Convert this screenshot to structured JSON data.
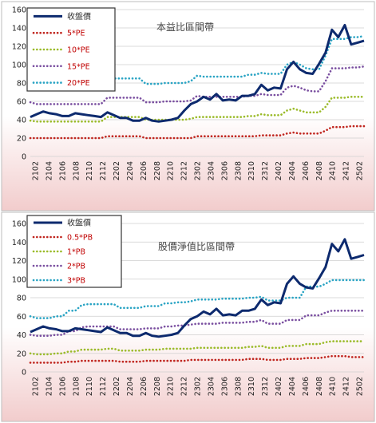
{
  "colors": {
    "price": "#0d2a6e",
    "s1": "#c0261f",
    "s2": "#9bbb2a",
    "s3": "#7a4fa0",
    "s4": "#2aa4c4",
    "bg_top": "#ffffff",
    "bg_bottom": "#f0c8c8"
  },
  "chart_data": [
    {
      "type": "line",
      "title": "本益比區間帶",
      "ylim": [
        0,
        160
      ],
      "yticks": [
        0,
        20,
        40,
        60,
        80,
        100,
        120,
        140,
        160
      ],
      "x_tick_labels": [
        "2102",
        "2104",
        "2106",
        "2108",
        "2110",
        "2112",
        "2202",
        "2204",
        "2206",
        "2208",
        "2210",
        "2212",
        "2302",
        "2304",
        "2306",
        "2308",
        "2310",
        "2312",
        "2402",
        "2404",
        "2406",
        "2408",
        "2410",
        "2412",
        "2502"
      ],
      "grid": "horizontal",
      "legend_position": "top-left",
      "series": [
        {
          "name": "收盤價",
          "style": "solid",
          "values": [
            43,
            46,
            49,
            47,
            46,
            44,
            44,
            47,
            46,
            45,
            44,
            43,
            48,
            45,
            42,
            42,
            39,
            39,
            42,
            39,
            38,
            39,
            40,
            42,
            50,
            57,
            60,
            65,
            62,
            68,
            61,
            62,
            61,
            66,
            66,
            68,
            78,
            72,
            75,
            74,
            95,
            103,
            95,
            91,
            90,
            101,
            113,
            138,
            130,
            143,
            122,
            124,
            126
          ]
        },
        {
          "name": "5*PE",
          "style": "dotted",
          "values": [
            20,
            20,
            20,
            20,
            20,
            20,
            20,
            20,
            20,
            20,
            20,
            20,
            22,
            22,
            22,
            22,
            22,
            22,
            20,
            20,
            20,
            20,
            20,
            20,
            20,
            20,
            22,
            22,
            22,
            22,
            22,
            22,
            22,
            22,
            22,
            22,
            23,
            23,
            23,
            23,
            25,
            26,
            25,
            25,
            25,
            25,
            28,
            32,
            32,
            32,
            33,
            33,
            33
          ]
        },
        {
          "name": "10*PE",
          "style": "dotted",
          "values": [
            39,
            38,
            38,
            38,
            38,
            38,
            38,
            38,
            38,
            38,
            38,
            38,
            43,
            43,
            43,
            43,
            43,
            43,
            40,
            40,
            40,
            40,
            40,
            40,
            40,
            41,
            43,
            43,
            43,
            43,
            43,
            43,
            43,
            43,
            44,
            44,
            46,
            45,
            45,
            45,
            50,
            52,
            50,
            48,
            48,
            48,
            54,
            64,
            64,
            64,
            65,
            65,
            65
          ]
        },
        {
          "name": "15*PE",
          "style": "dotted",
          "values": [
            59,
            57,
            57,
            57,
            57,
            57,
            57,
            57,
            57,
            57,
            57,
            57,
            64,
            64,
            64,
            64,
            64,
            64,
            59,
            59,
            59,
            60,
            60,
            60,
            60,
            61,
            66,
            65,
            65,
            65,
            65,
            65,
            65,
            65,
            66,
            66,
            68,
            67,
            67,
            67,
            75,
            77,
            75,
            72,
            71,
            71,
            82,
            96,
            96,
            96,
            97,
            97,
            98
          ]
        },
        {
          "name": "20*PE",
          "style": "dotted",
          "values": [
            78,
            76,
            76,
            76,
            76,
            76,
            76,
            76,
            76,
            76,
            76,
            76,
            85,
            85,
            85,
            85,
            85,
            85,
            79,
            79,
            79,
            80,
            80,
            80,
            80,
            82,
            88,
            87,
            87,
            87,
            87,
            87,
            87,
            87,
            89,
            89,
            91,
            90,
            90,
            90,
            100,
            103,
            100,
            96,
            95,
            95,
            110,
            128,
            128,
            128,
            130,
            130,
            131
          ]
        }
      ]
    },
    {
      "type": "line",
      "title": "股價淨值比區間帶",
      "ylim": [
        0,
        160
      ],
      "yticks": [
        0,
        20,
        40,
        60,
        80,
        100,
        120,
        140,
        160
      ],
      "x_tick_labels": [
        "2102",
        "2104",
        "2106",
        "2108",
        "2110",
        "2112",
        "2202",
        "2204",
        "2206",
        "2208",
        "2210",
        "2212",
        "2302",
        "2304",
        "2306",
        "2308",
        "2310",
        "2312",
        "2402",
        "2404",
        "2406",
        "2408",
        "2410",
        "2412",
        "2502"
      ],
      "grid": "horizontal",
      "legend_position": "top-left",
      "series": [
        {
          "name": "收盤價",
          "style": "solid",
          "values": [
            43,
            46,
            49,
            47,
            46,
            44,
            44,
            47,
            46,
            45,
            44,
            43,
            48,
            45,
            42,
            42,
            39,
            39,
            42,
            39,
            38,
            39,
            40,
            42,
            50,
            57,
            60,
            65,
            62,
            68,
            61,
            62,
            61,
            66,
            66,
            68,
            78,
            72,
            75,
            74,
            95,
            103,
            95,
            91,
            90,
            101,
            113,
            138,
            130,
            143,
            122,
            124,
            126
          ]
        },
        {
          "name": "0.5*PB",
          "style": "dotted",
          "values": [
            10,
            10,
            10,
            10,
            10,
            10,
            11,
            11,
            12,
            12,
            12,
            12,
            12,
            12,
            11,
            11,
            11,
            11,
            12,
            12,
            12,
            12,
            12,
            12,
            12,
            13,
            13,
            13,
            13,
            13,
            13,
            13,
            13,
            13,
            14,
            14,
            14,
            13,
            13,
            13,
            14,
            14,
            14,
            15,
            15,
            15,
            16,
            17,
            17,
            17,
            16,
            16,
            16
          ]
        },
        {
          "name": "1*PB",
          "style": "dotted",
          "values": [
            20,
            19,
            19,
            19,
            20,
            20,
            22,
            22,
            24,
            24,
            24,
            24,
            25,
            25,
            23,
            23,
            23,
            23,
            24,
            24,
            24,
            25,
            25,
            25,
            25,
            25,
            26,
            26,
            26,
            26,
            26,
            26,
            26,
            26,
            27,
            27,
            28,
            26,
            26,
            26,
            28,
            28,
            28,
            30,
            30,
            30,
            32,
            33,
            33,
            33,
            33,
            33,
            33
          ]
        },
        {
          "name": "2*PB",
          "style": "dotted",
          "values": [
            40,
            39,
            39,
            39,
            40,
            40,
            44,
            44,
            48,
            49,
            49,
            49,
            49,
            49,
            46,
            46,
            46,
            46,
            47,
            47,
            47,
            49,
            49,
            50,
            50,
            51,
            52,
            52,
            52,
            52,
            53,
            53,
            53,
            53,
            54,
            54,
            56,
            52,
            52,
            52,
            56,
            56,
            56,
            61,
            61,
            61,
            64,
            66,
            66,
            66,
            66,
            66,
            66
          ]
        },
        {
          "name": "3*PB",
          "style": "dotted",
          "values": [
            60,
            58,
            58,
            58,
            60,
            60,
            66,
            66,
            72,
            73,
            73,
            73,
            73,
            73,
            69,
            69,
            69,
            69,
            71,
            71,
            71,
            74,
            74,
            75,
            75,
            76,
            78,
            78,
            78,
            78,
            79,
            79,
            79,
            79,
            80,
            80,
            81,
            77,
            77,
            77,
            80,
            80,
            80,
            92,
            92,
            92,
            95,
            99,
            99,
            99,
            99,
            99,
            99
          ]
        }
      ]
    }
  ]
}
